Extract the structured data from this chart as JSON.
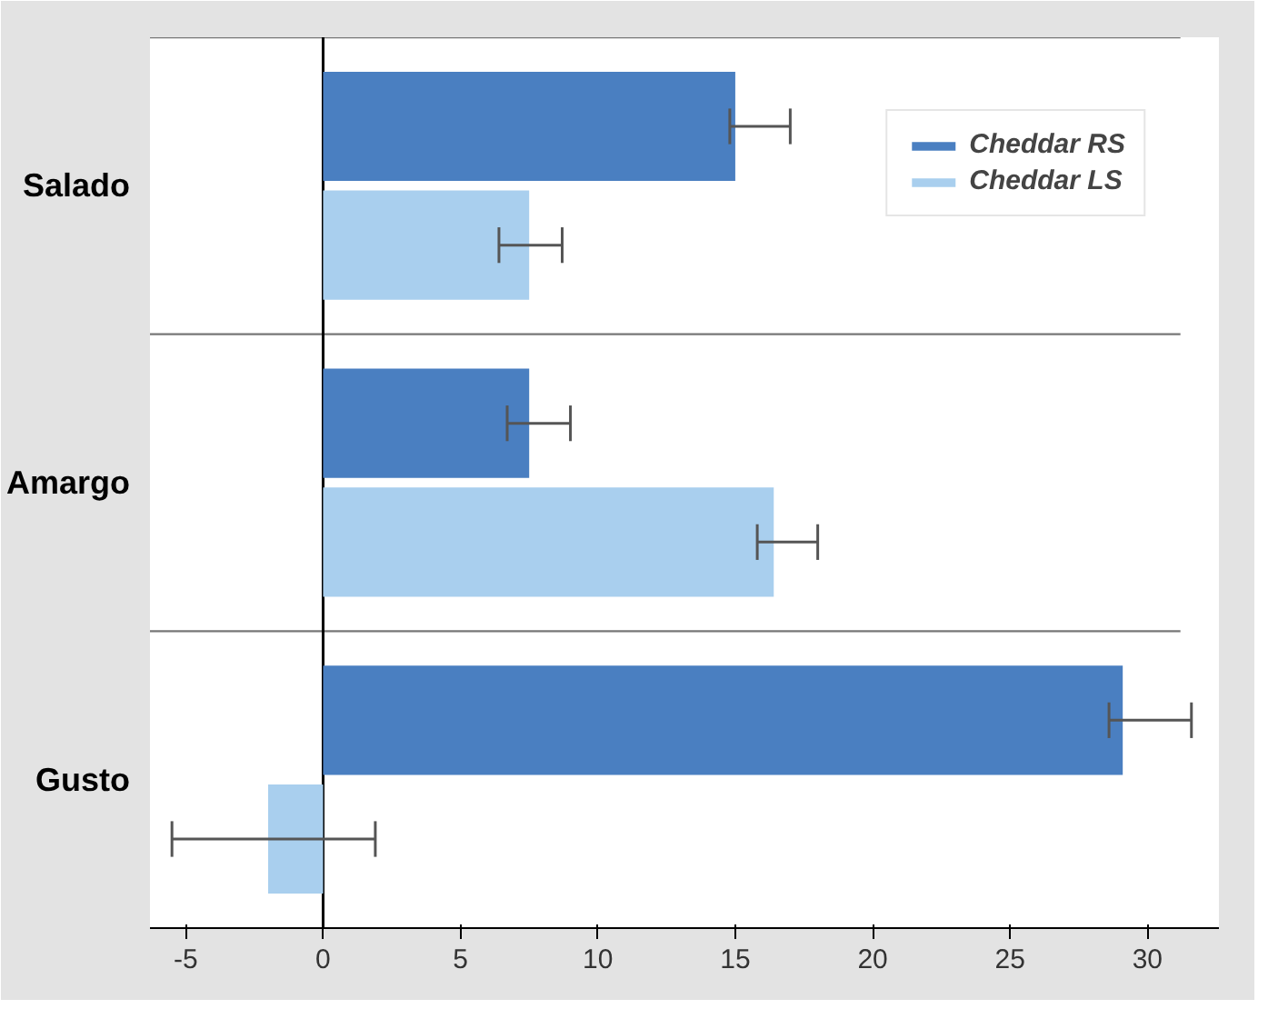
{
  "chart_data": {
    "type": "bar",
    "orientation": "horizontal",
    "categories": [
      "Salado",
      "Amargo",
      "Gusto"
    ],
    "series": [
      {
        "name": "Cheddar LS",
        "color": "#a9cfee",
        "values": [
          7.5,
          16.4,
          -2.0
        ],
        "errors": [
          [
            6.4,
            8.7
          ],
          [
            15.8,
            18.0
          ],
          [
            -5.5,
            1.9
          ]
        ]
      },
      {
        "name": "Cheddar RS",
        "color": "#4a7fc1",
        "values": [
          15.0,
          7.5,
          29.1
        ],
        "errors": [
          [
            14.8,
            17.0
          ],
          [
            6.7,
            9.0
          ],
          [
            28.6,
            31.6
          ]
        ]
      }
    ],
    "xlim": [
      -6.3,
      32.6
    ],
    "xticks": [
      -5,
      0,
      5,
      10,
      15,
      20,
      25,
      30
    ],
    "grid": "y",
    "legend": "top right"
  }
}
